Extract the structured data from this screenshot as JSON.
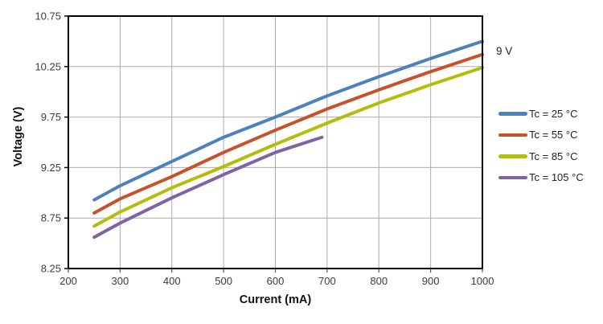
{
  "chart_data": {
    "type": "line",
    "title": "",
    "xlabel": "Current (mA)",
    "ylabel": "Voltage (V)",
    "annotation": "9 V",
    "grid": true,
    "legend_position": "right",
    "x_axis": {
      "min": 200,
      "max": 1000,
      "tick_step": 100,
      "ticks": [
        200,
        300,
        400,
        500,
        600,
        700,
        800,
        900,
        1000
      ]
    },
    "y_axis": {
      "min": 8.25,
      "max": 10.75,
      "tick_step": 0.5,
      "ticks": [
        8.25,
        8.75,
        9.25,
        9.75,
        10.25,
        10.75
      ]
    },
    "series": [
      {
        "name": "Tc = 25 °C",
        "color": "#4D81BD",
        "x": [
          250,
          300,
          400,
          500,
          600,
          700,
          800,
          900,
          1000
        ],
        "values": [
          8.93,
          9.07,
          9.31,
          9.55,
          9.75,
          9.96,
          10.15,
          10.33,
          10.5
        ]
      },
      {
        "name": "Tc = 55 °C",
        "color": "#C8502B",
        "x": [
          250,
          300,
          400,
          500,
          600,
          700,
          800,
          900,
          1000
        ],
        "values": [
          8.8,
          8.94,
          9.16,
          9.4,
          9.62,
          9.83,
          10.02,
          10.2,
          10.37
        ]
      },
      {
        "name": "Tc = 85 °C",
        "color": "#B5BD0B",
        "x": [
          250,
          300,
          400,
          500,
          600,
          700,
          800,
          900,
          1000
        ],
        "values": [
          8.67,
          8.81,
          9.05,
          9.26,
          9.48,
          9.69,
          9.89,
          10.07,
          10.24
        ]
      },
      {
        "name": "Tc = 105 °C",
        "color": "#7F63A6",
        "x": [
          250,
          300,
          400,
          500,
          600,
          690
        ],
        "values": [
          8.56,
          8.7,
          8.95,
          9.18,
          9.4,
          9.55
        ]
      }
    ]
  },
  "colors": {
    "grid": "#ACACAC",
    "axis_border": "#000000",
    "tick_label": "#3B3B3B",
    "x_tick_mark": "#555555"
  }
}
